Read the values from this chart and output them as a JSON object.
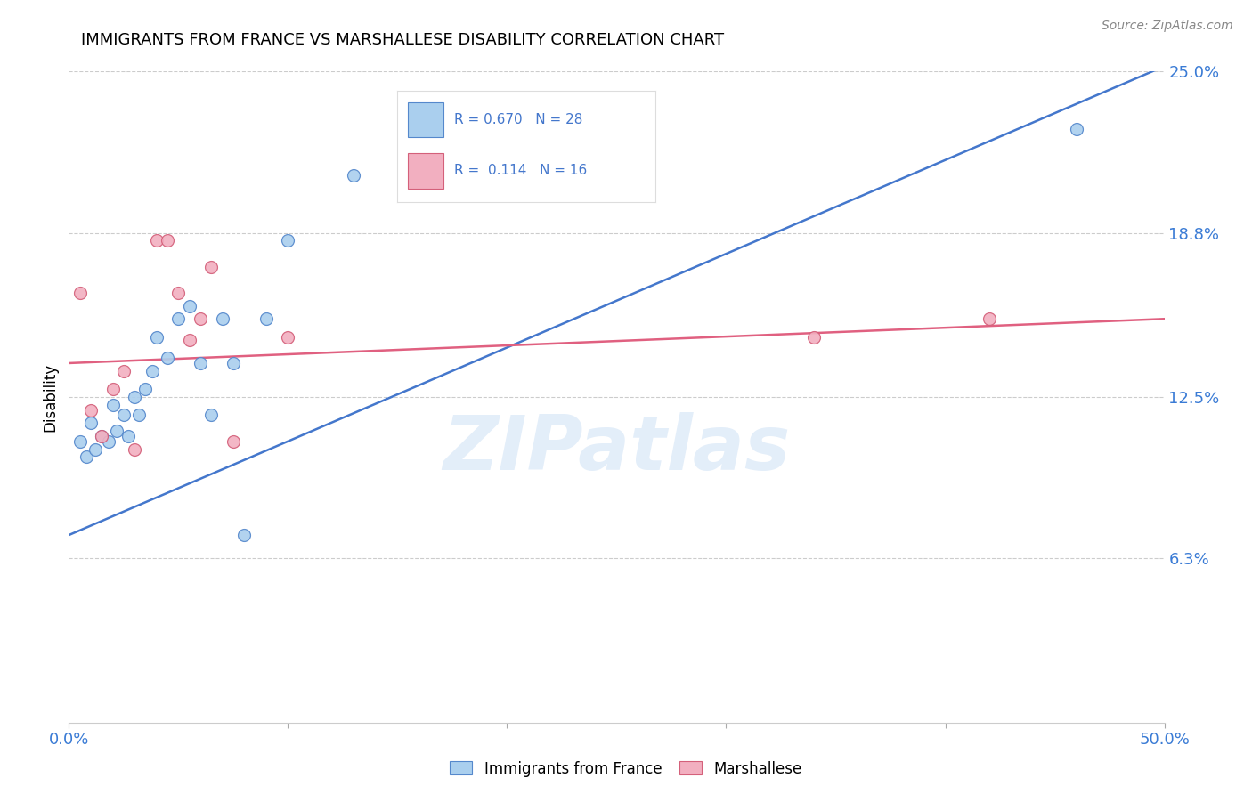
{
  "title": "IMMIGRANTS FROM FRANCE VS MARSHALLESE DISABILITY CORRELATION CHART",
  "source": "Source: ZipAtlas.com",
  "ylabel": "Disability",
  "xlim": [
    0.0,
    0.5
  ],
  "ylim": [
    0.0,
    0.25
  ],
  "ytick_positions": [
    0.063,
    0.125,
    0.188,
    0.25
  ],
  "ytick_labels": [
    "6.3%",
    "12.5%",
    "18.8%",
    "25.0%"
  ],
  "grid_color": "#cccccc",
  "watermark": "ZIPatlas",
  "blue_R": "0.670",
  "blue_N": "28",
  "pink_R": "0.114",
  "pink_N": "16",
  "blue_scatter_x": [
    0.005,
    0.008,
    0.01,
    0.012,
    0.015,
    0.018,
    0.02,
    0.022,
    0.025,
    0.027,
    0.03,
    0.032,
    0.035,
    0.038,
    0.04,
    0.045,
    0.05,
    0.055,
    0.06,
    0.065,
    0.07,
    0.075,
    0.08,
    0.09,
    0.1,
    0.13,
    0.175,
    0.46
  ],
  "blue_scatter_y": [
    0.108,
    0.102,
    0.115,
    0.105,
    0.11,
    0.108,
    0.122,
    0.112,
    0.118,
    0.11,
    0.125,
    0.118,
    0.128,
    0.135,
    0.148,
    0.14,
    0.155,
    0.16,
    0.138,
    0.118,
    0.155,
    0.138,
    0.072,
    0.155,
    0.185,
    0.21,
    0.22,
    0.228
  ],
  "pink_scatter_x": [
    0.005,
    0.01,
    0.015,
    0.02,
    0.025,
    0.03,
    0.04,
    0.045,
    0.05,
    0.055,
    0.06,
    0.065,
    0.075,
    0.1,
    0.34,
    0.42
  ],
  "pink_scatter_y": [
    0.165,
    0.12,
    0.11,
    0.128,
    0.135,
    0.105,
    0.185,
    0.185,
    0.165,
    0.147,
    0.155,
    0.175,
    0.108,
    0.148,
    0.148,
    0.155
  ],
  "blue_line_x": [
    0.0,
    0.5
  ],
  "blue_line_y": [
    0.072,
    0.252
  ],
  "pink_line_x": [
    0.0,
    0.5
  ],
  "pink_line_y": [
    0.138,
    0.155
  ],
  "blue_color": "#aacfee",
  "blue_edge_color": "#5588cc",
  "pink_color": "#f2afc0",
  "pink_edge_color": "#d4607a",
  "blue_line_color": "#4477cc",
  "pink_line_color": "#e06080",
  "scatter_size": 100,
  "background_color": "#ffffff"
}
